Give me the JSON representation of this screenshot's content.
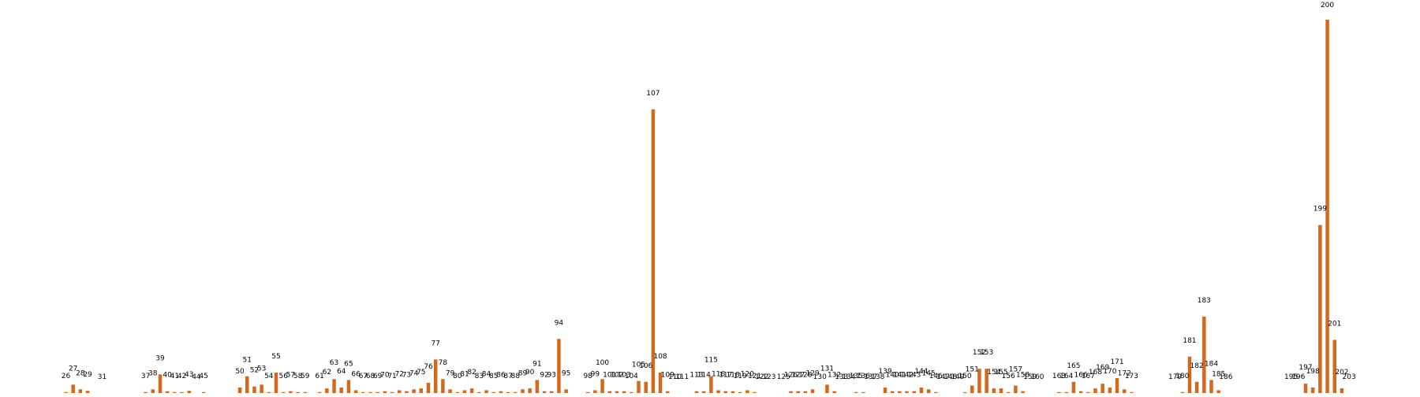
{
  "chart_data": {
    "type": "bar",
    "title": "",
    "xlabel": "",
    "ylabel": "",
    "bar_color": "#d2691e",
    "background": "#ffffff",
    "grid": false,
    "ylim": [
      0,
      200
    ],
    "bars": [
      {
        "x": 26,
        "label": "26",
        "value": 0.5
      },
      {
        "x": 27,
        "label": "27",
        "value": 4.5
      },
      {
        "x": 28,
        "label": "28",
        "value": 2
      },
      {
        "x": 29,
        "label": "29",
        "value": 1.2
      },
      {
        "x": 31,
        "label": "31",
        "value": 0
      },
      {
        "x": 37,
        "label": "37",
        "value": 0.5
      },
      {
        "x": 38,
        "label": "38",
        "value": 2
      },
      {
        "x": 39,
        "label": "39",
        "value": 10
      },
      {
        "x": 40,
        "label": "40",
        "value": 1
      },
      {
        "x": 41,
        "label": "41",
        "value": 0.5
      },
      {
        "x": 42,
        "label": "42",
        "value": 0.5
      },
      {
        "x": 43,
        "label": "43",
        "value": 1.2
      },
      {
        "x": 44,
        "label": "44",
        "value": 0
      },
      {
        "x": 45,
        "label": "45",
        "value": 0.5
      },
      {
        "x": 50,
        "label": "50",
        "value": 3
      },
      {
        "x": 51,
        "label": "51",
        "value": 9
      },
      {
        "x": 52,
        "label": "52",
        "value": 3.5
      },
      {
        "x": 53,
        "label": "53",
        "value": 4.5
      },
      {
        "x": 54,
        "label": "54",
        "value": 0.5
      },
      {
        "x": 55,
        "label": "55",
        "value": 11
      },
      {
        "x": 56,
        "label": "56",
        "value": 0.5
      },
      {
        "x": 57,
        "label": "57",
        "value": 1
      },
      {
        "x": 58,
        "label": "58",
        "value": 0.5
      },
      {
        "x": 59,
        "label": "59",
        "value": 0.5
      },
      {
        "x": 61,
        "label": "61",
        "value": 0.5
      },
      {
        "x": 62,
        "label": "62",
        "value": 2.5
      },
      {
        "x": 63,
        "label": "63",
        "value": 7.5
      },
      {
        "x": 64,
        "label": "64",
        "value": 3
      },
      {
        "x": 65,
        "label": "65",
        "value": 7
      },
      {
        "x": 66,
        "label": "66",
        "value": 1.5
      },
      {
        "x": 67,
        "label": "67",
        "value": 0.5
      },
      {
        "x": 68,
        "label": "68",
        "value": 0.5
      },
      {
        "x": 69,
        "label": "69",
        "value": 0.5
      },
      {
        "x": 70,
        "label": "70",
        "value": 1
      },
      {
        "x": 71,
        "label": "71",
        "value": 0.5
      },
      {
        "x": 72,
        "label": "72",
        "value": 1.5
      },
      {
        "x": 73,
        "label": "73",
        "value": 1
      },
      {
        "x": 74,
        "label": "74",
        "value": 2
      },
      {
        "x": 75,
        "label": "75",
        "value": 2.5
      },
      {
        "x": 76,
        "label": "76",
        "value": 5.5
      },
      {
        "x": 77,
        "label": "77",
        "value": 18
      },
      {
        "x": 78,
        "label": "78",
        "value": 7.5
      },
      {
        "x": 79,
        "label": "79",
        "value": 2
      },
      {
        "x": 80,
        "label": "80",
        "value": 0.5
      },
      {
        "x": 81,
        "label": "81",
        "value": 1.5
      },
      {
        "x": 82,
        "label": "82",
        "value": 2.5
      },
      {
        "x": 83,
        "label": "83",
        "value": 0.5
      },
      {
        "x": 84,
        "label": "84",
        "value": 1.5
      },
      {
        "x": 85,
        "label": "85",
        "value": 0.5
      },
      {
        "x": 86,
        "label": "86",
        "value": 1
      },
      {
        "x": 87,
        "label": "87",
        "value": 0.5
      },
      {
        "x": 88,
        "label": "88",
        "value": 0.5
      },
      {
        "x": 89,
        "label": "89",
        "value": 2
      },
      {
        "x": 90,
        "label": "90",
        "value": 2.5
      },
      {
        "x": 91,
        "label": "91",
        "value": 7
      },
      {
        "x": 92,
        "label": "92",
        "value": 1
      },
      {
        "x": 93,
        "label": "93",
        "value": 1
      },
      {
        "x": 94,
        "label": "94",
        "value": 29
      },
      {
        "x": 95,
        "label": "95",
        "value": 2
      },
      {
        "x": 98,
        "label": "98",
        "value": 0.5
      },
      {
        "x": 99,
        "label": "99",
        "value": 1.5
      },
      {
        "x": 100,
        "label": "100",
        "value": 7.5
      },
      {
        "x": 101,
        "label": "101",
        "value": 1
      },
      {
        "x": 102,
        "label": "102",
        "value": 1
      },
      {
        "x": 103,
        "label": "103",
        "value": 1
      },
      {
        "x": 104,
        "label": "104",
        "value": 0.5
      },
      {
        "x": 105,
        "label": "105",
        "value": 6.5
      },
      {
        "x": 106,
        "label": "106",
        "value": 6
      },
      {
        "x": 107,
        "label": "107",
        "value": 152
      },
      {
        "x": 108,
        "label": "108",
        "value": 11
      },
      {
        "x": 109,
        "label": "109",
        "value": 1
      },
      {
        "x": 110,
        "label": "110",
        "value": 0
      },
      {
        "x": 111,
        "label": "111",
        "value": 0
      },
      {
        "x": 113,
        "label": "113",
        "value": 1
      },
      {
        "x": 114,
        "label": "114",
        "value": 1
      },
      {
        "x": 115,
        "label": "115",
        "value": 9
      },
      {
        "x": 116,
        "label": "116",
        "value": 1.5
      },
      {
        "x": 117,
        "label": "117",
        "value": 1
      },
      {
        "x": 118,
        "label": "118",
        "value": 1
      },
      {
        "x": 119,
        "label": "119",
        "value": 0.5
      },
      {
        "x": 120,
        "label": "120",
        "value": 1.5
      },
      {
        "x": 121,
        "label": "121",
        "value": 0.5
      },
      {
        "x": 122,
        "label": "122",
        "value": 0
      },
      {
        "x": 123,
        "label": "123",
        "value": 0
      },
      {
        "x": 125,
        "label": "125",
        "value": 0
      },
      {
        "x": 126,
        "label": "126",
        "value": 1
      },
      {
        "x": 127,
        "label": "127",
        "value": 1
      },
      {
        "x": 128,
        "label": "128",
        "value": 1
      },
      {
        "x": 129,
        "label": "129",
        "value": 2
      },
      {
        "x": 130,
        "label": "130",
        "value": 0
      },
      {
        "x": 131,
        "label": "131",
        "value": 4.5
      },
      {
        "x": 132,
        "label": "132",
        "value": 1
      },
      {
        "x": 133,
        "label": "133",
        "value": 0
      },
      {
        "x": 134,
        "label": "134",
        "value": 0
      },
      {
        "x": 135,
        "label": "135",
        "value": 0.5
      },
      {
        "x": 136,
        "label": "136",
        "value": 0.5
      },
      {
        "x": 137,
        "label": "137",
        "value": 0
      },
      {
        "x": 138,
        "label": "138",
        "value": 0
      },
      {
        "x": 139,
        "label": "139",
        "value": 3
      },
      {
        "x": 140,
        "label": "140",
        "value": 1
      },
      {
        "x": 141,
        "label": "141",
        "value": 1
      },
      {
        "x": 142,
        "label": "142",
        "value": 1
      },
      {
        "x": 143,
        "label": "143",
        "value": 1
      },
      {
        "x": 144,
        "label": "144",
        "value": 3
      },
      {
        "x": 145,
        "label": "145",
        "value": 2
      },
      {
        "x": 146,
        "label": "146",
        "value": 0.5
      },
      {
        "x": 147,
        "label": "147",
        "value": 0
      },
      {
        "x": 148,
        "label": "148",
        "value": 0
      },
      {
        "x": 149,
        "label": "149",
        "value": 0
      },
      {
        "x": 150,
        "label": "150",
        "value": 0.5
      },
      {
        "x": 151,
        "label": "151",
        "value": 4
      },
      {
        "x": 152,
        "label": "152",
        "value": 13
      },
      {
        "x": 153,
        "label": "153",
        "value": 13
      },
      {
        "x": 154,
        "label": "154",
        "value": 2.5
      },
      {
        "x": 155,
        "label": "155",
        "value": 2.5
      },
      {
        "x": 156,
        "label": "156",
        "value": 0.5
      },
      {
        "x": 157,
        "label": "157",
        "value": 4
      },
      {
        "x": 158,
        "label": "158",
        "value": 1
      },
      {
        "x": 159,
        "label": "159",
        "value": 0
      },
      {
        "x": 160,
        "label": "160",
        "value": 0
      },
      {
        "x": 163,
        "label": "163",
        "value": 0.5
      },
      {
        "x": 164,
        "label": "164",
        "value": 0.5
      },
      {
        "x": 165,
        "label": "165",
        "value": 6
      },
      {
        "x": 166,
        "label": "166",
        "value": 1
      },
      {
        "x": 167,
        "label": "167",
        "value": 0.5
      },
      {
        "x": 168,
        "label": "168",
        "value": 2.5
      },
      {
        "x": 169,
        "label": "169",
        "value": 5
      },
      {
        "x": 170,
        "label": "170",
        "value": 3
      },
      {
        "x": 171,
        "label": "171",
        "value": 8
      },
      {
        "x": 172,
        "label": "172",
        "value": 2
      },
      {
        "x": 173,
        "label": "173",
        "value": 0.5
      },
      {
        "x": 179,
        "label": "179",
        "value": 0
      },
      {
        "x": 180,
        "label": "180",
        "value": 0.5
      },
      {
        "x": 181,
        "label": "181",
        "value": 19.5
      },
      {
        "x": 182,
        "label": "182",
        "value": 6
      },
      {
        "x": 183,
        "label": "183",
        "value": 41
      },
      {
        "x": 184,
        "label": "184",
        "value": 7
      },
      {
        "x": 185,
        "label": "185",
        "value": 1.5
      },
      {
        "x": 186,
        "label": "186",
        "value": 0
      },
      {
        "x": 195,
        "label": "195",
        "value": 0
      },
      {
        "x": 196,
        "label": "196",
        "value": 0
      },
      {
        "x": 197,
        "label": "197",
        "value": 5
      },
      {
        "x": 198,
        "label": "198",
        "value": 3
      },
      {
        "x": 199,
        "label": "199",
        "value": 90
      },
      {
        "x": 200,
        "label": "200",
        "value": 200
      },
      {
        "x": 201,
        "label": "201",
        "value": 28.5
      },
      {
        "x": 202,
        "label": "202",
        "value": 2.5
      },
      {
        "x": 203,
        "label": "203",
        "value": 0
      }
    ]
  }
}
